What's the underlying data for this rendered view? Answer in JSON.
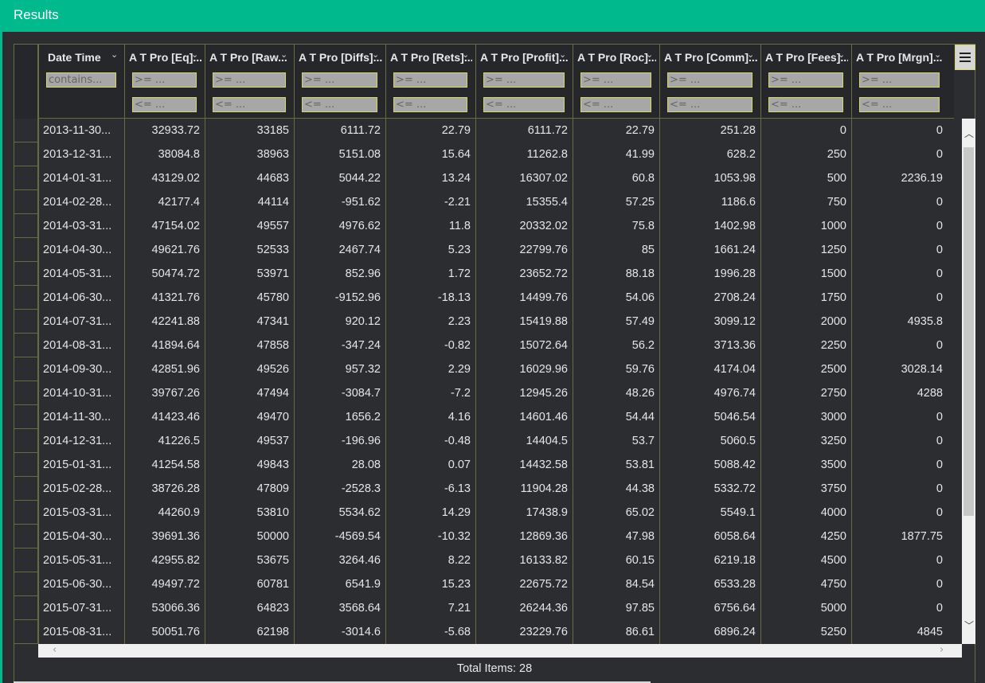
{
  "window": {
    "title": "Results"
  },
  "filters": {
    "contains_placeholder": "contains...",
    "gte_placeholder": ">= ...",
    "lte_placeholder": "<= ..."
  },
  "columns": [
    {
      "label": "Date Time",
      "type": "text"
    },
    {
      "label": "A T Pro [Eq]...",
      "type": "num"
    },
    {
      "label": "A T Pro [Raw...",
      "type": "num"
    },
    {
      "label": "A T Pro [Diffs]...",
      "type": "num"
    },
    {
      "label": "A T Pro [Rets]...",
      "type": "num"
    },
    {
      "label": "A T Pro [Profit]...",
      "type": "num"
    },
    {
      "label": "A T Pro [Roc]...",
      "type": "num"
    },
    {
      "label": "A T Pro [Comm]...",
      "type": "num"
    },
    {
      "label": "A T Pro [Fees]...",
      "type": "num"
    },
    {
      "label": "A T Pro [Mrgn]...",
      "type": "num"
    }
  ],
  "rows": [
    [
      "2013-11-30...",
      "32933.72",
      "33185",
      "6111.72",
      "22.79",
      "6111.72",
      "22.79",
      "251.28",
      "0",
      "0"
    ],
    [
      "2013-12-31...",
      "38084.8",
      "38963",
      "5151.08",
      "15.64",
      "11262.8",
      "41.99",
      "628.2",
      "250",
      "0"
    ],
    [
      "2014-01-31...",
      "43129.02",
      "44683",
      "5044.22",
      "13.24",
      "16307.02",
      "60.8",
      "1053.98",
      "500",
      "2236.19"
    ],
    [
      "2014-02-28...",
      "42177.4",
      "44114",
      "-951.62",
      "-2.21",
      "15355.4",
      "57.25",
      "1186.6",
      "750",
      "0"
    ],
    [
      "2014-03-31...",
      "47154.02",
      "49557",
      "4976.62",
      "11.8",
      "20332.02",
      "75.8",
      "1402.98",
      "1000",
      "0"
    ],
    [
      "2014-04-30...",
      "49621.76",
      "52533",
      "2467.74",
      "5.23",
      "22799.76",
      "85",
      "1661.24",
      "1250",
      "0"
    ],
    [
      "2014-05-31...",
      "50474.72",
      "53971",
      "852.96",
      "1.72",
      "23652.72",
      "88.18",
      "1996.28",
      "1500",
      "0"
    ],
    [
      "2014-06-30...",
      "41321.76",
      "45780",
      "-9152.96",
      "-18.13",
      "14499.76",
      "54.06",
      "2708.24",
      "1750",
      "0"
    ],
    [
      "2014-07-31...",
      "42241.88",
      "47341",
      "920.12",
      "2.23",
      "15419.88",
      "57.49",
      "3099.12",
      "2000",
      "4935.8"
    ],
    [
      "2014-08-31...",
      "41894.64",
      "47858",
      "-347.24",
      "-0.82",
      "15072.64",
      "56.2",
      "3713.36",
      "2250",
      "0"
    ],
    [
      "2014-09-30...",
      "42851.96",
      "49526",
      "957.32",
      "2.29",
      "16029.96",
      "59.76",
      "4174.04",
      "2500",
      "3028.14"
    ],
    [
      "2014-10-31...",
      "39767.26",
      "47494",
      "-3084.7",
      "-7.2",
      "12945.26",
      "48.26",
      "4976.74",
      "2750",
      "4288"
    ],
    [
      "2014-11-30...",
      "41423.46",
      "49470",
      "1656.2",
      "4.16",
      "14601.46",
      "54.44",
      "5046.54",
      "3000",
      "0"
    ],
    [
      "2014-12-31...",
      "41226.5",
      "49537",
      "-196.96",
      "-0.48",
      "14404.5",
      "53.7",
      "5060.5",
      "3250",
      "0"
    ],
    [
      "2015-01-31...",
      "41254.58",
      "49843",
      "28.08",
      "0.07",
      "14432.58",
      "53.81",
      "5088.42",
      "3500",
      "0"
    ],
    [
      "2015-02-28...",
      "38726.28",
      "47809",
      "-2528.3",
      "-6.13",
      "11904.28",
      "44.38",
      "5332.72",
      "3750",
      "0"
    ],
    [
      "2015-03-31...",
      "44260.9",
      "53810",
      "5534.62",
      "14.29",
      "17438.9",
      "65.02",
      "5549.1",
      "4000",
      "0"
    ],
    [
      "2015-04-30...",
      "39691.36",
      "50000",
      "-4569.54",
      "-10.32",
      "12869.36",
      "47.98",
      "6058.64",
      "4250",
      "1877.75"
    ],
    [
      "2015-05-31...",
      "42955.82",
      "53675",
      "3264.46",
      "8.22",
      "16133.82",
      "60.15",
      "6219.18",
      "4500",
      "0"
    ],
    [
      "2015-06-30...",
      "49497.72",
      "60781",
      "6541.9",
      "15.23",
      "22675.72",
      "84.54",
      "6533.28",
      "4750",
      "0"
    ],
    [
      "2015-07-31...",
      "53066.36",
      "64823",
      "3568.64",
      "7.21",
      "26244.36",
      "97.85",
      "6756.64",
      "5000",
      "0"
    ],
    [
      "2015-08-31...",
      "50051.76",
      "62198",
      "-3014.6",
      "-5.68",
      "23229.76",
      "86.61",
      "6896.24",
      "5250",
      "4845"
    ]
  ],
  "footer": {
    "total_items": "Total Items: 28"
  },
  "icons": {
    "menu": "hamburger-menu-icon",
    "sort": "chevron-down-icon"
  },
  "colors": {
    "titlebar": "#00b98d",
    "grid_border": "#6a6b45",
    "background": "#2b2d31"
  }
}
